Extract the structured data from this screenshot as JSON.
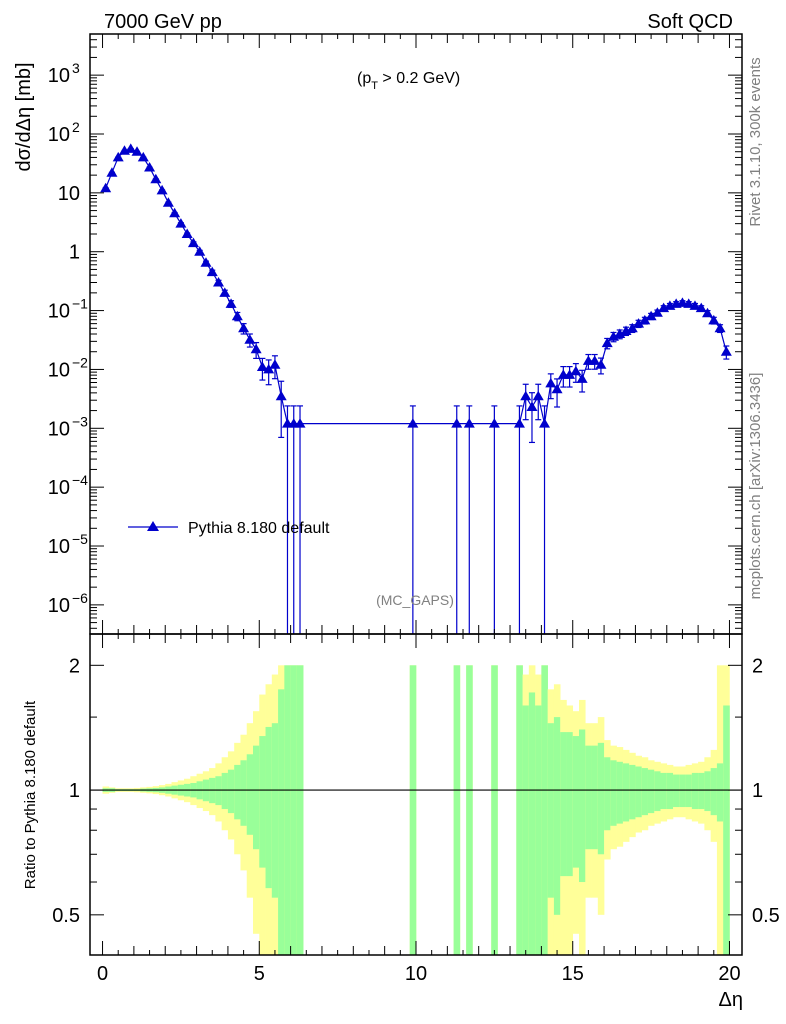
{
  "header": {
    "left_label": "7000 GeV pp",
    "right_label": "Soft QCD"
  },
  "side_labels": {
    "upper": "Rivet 3.1.10,  300k events",
    "lower": "mcplots.cern.ch [arXiv:1306.3436]"
  },
  "chart_data": [
    {
      "type": "line",
      "annotation_main": "(p",
      "annotation_sub": "T",
      "annotation_tail": " > 0.2 GeV)",
      "watermark": "(MC_GAPS)",
      "ylabel": "dσ/dΔη [mb]",
      "xlim": [
        -0.4,
        20.4
      ],
      "ylog": true,
      "ylim": [
        3.2e-07,
        5000.0
      ],
      "yticks": [
        {
          "label": "10",
          "exp": "3",
          "value": 1000
        },
        {
          "label": "10",
          "exp": "2",
          "value": 100
        },
        {
          "label": "10",
          "exp": "",
          "value": 10
        },
        {
          "label": "1",
          "exp": "",
          "value": 1
        },
        {
          "label": "10",
          "exp": "−1",
          "value": 0.1
        },
        {
          "label": "10",
          "exp": "−2",
          "value": 0.01
        },
        {
          "label": "10",
          "exp": "−3",
          "value": 0.001
        },
        {
          "label": "10",
          "exp": "−4",
          "value": 0.0001
        },
        {
          "label": "10",
          "exp": "−5",
          "value": 1e-05
        },
        {
          "label": "10",
          "exp": "−6",
          "value": 1e-06
        }
      ],
      "legend": {
        "label": "Pythia 8.180 default",
        "position": "bottom-left"
      },
      "series": [
        {
          "name": "Pythia 8.180 default",
          "color": "#0000cc",
          "x": [
            0.1,
            0.3,
            0.5,
            0.7,
            0.9,
            1.1,
            1.3,
            1.5,
            1.7,
            1.9,
            2.1,
            2.3,
            2.5,
            2.7,
            2.9,
            3.1,
            3.3,
            3.5,
            3.7,
            3.9,
            4.1,
            4.3,
            4.5,
            4.7,
            4.9,
            5.1,
            5.3,
            5.5,
            5.7,
            5.9,
            6.1,
            6.3,
            9.9,
            11.3,
            11.7,
            12.5,
            13.3,
            13.5,
            13.7,
            13.9,
            14.1,
            14.3,
            14.5,
            14.7,
            14.9,
            15.1,
            15.3,
            15.5,
            15.7,
            15.9,
            16.1,
            16.3,
            16.5,
            16.7,
            16.9,
            17.1,
            17.3,
            17.5,
            17.7,
            17.9,
            18.1,
            18.3,
            18.5,
            18.7,
            18.9,
            19.1,
            19.3,
            19.5,
            19.7,
            19.9
          ],
          "y": [
            12,
            22,
            40,
            52,
            56,
            50,
            40,
            27,
            17,
            11,
            6.8,
            4.5,
            3,
            2,
            1.4,
            1,
            0.65,
            0.45,
            0.3,
            0.2,
            0.13,
            0.08,
            0.05,
            0.032,
            0.022,
            0.011,
            0.01,
            0.012,
            0.0035,
            0.0012,
            0.0012,
            0.0012,
            0.0012,
            0.0012,
            0.0012,
            0.0012,
            0.0012,
            0.0035,
            0.0023,
            0.0035,
            0.0012,
            0.0058,
            0.0046,
            0.0081,
            0.0081,
            0.0093,
            0.0069,
            0.014,
            0.014,
            0.012,
            0.028,
            0.036,
            0.04,
            0.045,
            0.05,
            0.06,
            0.068,
            0.08,
            0.092,
            0.11,
            0.12,
            0.13,
            0.135,
            0.13,
            0.12,
            0.11,
            0.09,
            0.068,
            0.05,
            0.02
          ],
          "yerr_rel": [
            0.015,
            0.012,
            0.01,
            0.01,
            0.01,
            0.01,
            0.012,
            0.014,
            0.016,
            0.02,
            0.025,
            0.03,
            0.035,
            0.04,
            0.05,
            0.055,
            0.065,
            0.08,
            0.09,
            0.11,
            0.13,
            0.16,
            0.2,
            0.25,
            0.3,
            0.4,
            0.45,
            0.42,
            0.8,
            1,
            1,
            1,
            1,
            1,
            1,
            1,
            1,
            0.6,
            0.75,
            0.6,
            1,
            0.45,
            0.5,
            0.38,
            0.38,
            0.35,
            0.4,
            0.28,
            0.28,
            0.3,
            0.2,
            0.18,
            0.17,
            0.16,
            0.15,
            0.14,
            0.13,
            0.12,
            0.11,
            0.1,
            0.1,
            0.09,
            0.09,
            0.09,
            0.1,
            0.1,
            0.11,
            0.13,
            0.15,
            0.25
          ],
          "bands": {
            "green_rel": [
              0.01,
              0.01,
              0.005,
              0.005,
              0.005,
              0.005,
              0.008,
              0.01,
              0.012,
              0.015,
              0.02,
              0.025,
              0.03,
              0.035,
              0.04,
              0.05,
              0.06,
              0.07,
              0.08,
              0.1,
              0.12,
              0.15,
              0.18,
              0.22,
              0.28,
              0.35,
              0.42,
              0.45,
              0.75,
              1,
              1,
              1,
              1,
              1,
              1,
              1,
              1,
              0.6,
              0.72,
              0.6,
              1,
              0.45,
              0.5,
              0.38,
              0.38,
              0.35,
              0.4,
              0.28,
              0.28,
              0.3,
              0.2,
              0.18,
              0.17,
              0.16,
              0.15,
              0.14,
              0.13,
              0.12,
              0.11,
              0.1,
              0.1,
              0.09,
              0.09,
              0.09,
              0.1,
              0.1,
              0.11,
              0.13,
              0.16,
              0.6
            ],
            "yellow_rel": [
              0.02,
              0.015,
              0.01,
              0.01,
              0.01,
              0.012,
              0.015,
              0.018,
              0.022,
              0.028,
              0.035,
              0.045,
              0.055,
              0.065,
              0.08,
              0.095,
              0.11,
              0.13,
              0.16,
              0.2,
              0.24,
              0.3,
              0.36,
              0.45,
              0.55,
              0.7,
              0.8,
              0.9,
              1,
              1,
              1,
              1,
              1,
              1,
              1,
              1,
              1,
              0.9,
              1,
              0.9,
              1,
              0.75,
              0.8,
              0.65,
              0.6,
              0.55,
              0.65,
              0.45,
              0.45,
              0.5,
              0.32,
              0.28,
              0.27,
              0.25,
              0.23,
              0.21,
              0.2,
              0.18,
              0.17,
              0.16,
              0.15,
              0.14,
              0.14,
              0.15,
              0.16,
              0.17,
              0.2,
              0.25,
              1,
              1
            ]
          }
        }
      ]
    },
    {
      "type": "area",
      "ylabel": "Ratio to Pythia 8.180 default",
      "xlabel": "Δη",
      "xlim": [
        -0.4,
        20.4
      ],
      "ylog": true,
      "ylim": [
        0.4,
        2.38
      ],
      "yticks": [
        {
          "label": "0.5",
          "value": 0.5
        },
        {
          "label": "1",
          "value": 1
        },
        {
          "label": "2",
          "value": 2
        }
      ],
      "xticks": [
        {
          "label": "0",
          "value": 0
        },
        {
          "label": "5",
          "value": 5
        },
        {
          "label": "10",
          "value": 10
        },
        {
          "label": "15",
          "value": 15
        },
        {
          "label": "20",
          "value": 20
        }
      ],
      "band_colors": {
        "inner": "#99ff99",
        "outer": "#ffff99"
      }
    }
  ]
}
